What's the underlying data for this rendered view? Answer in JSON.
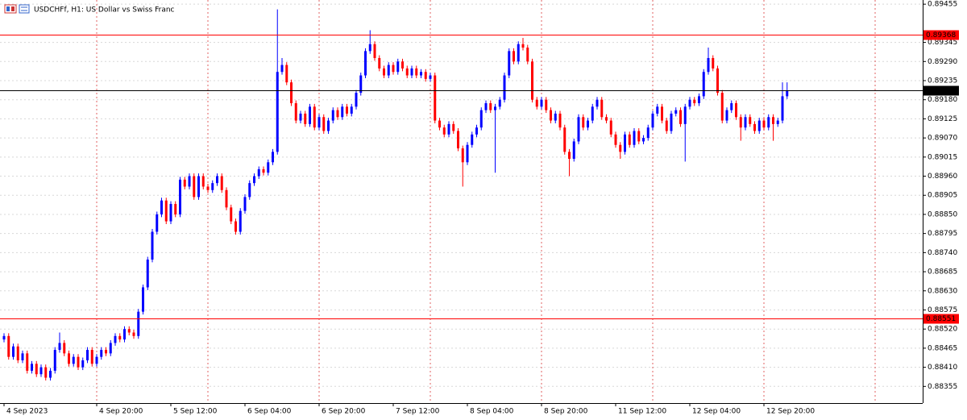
{
  "chart_data": {
    "type": "candlestick",
    "title": "USDCHFf, H1:  US Dollar vs Swiss Franc",
    "up_color": "#0000ff",
    "down_color": "#ff0000",
    "categories": [
      "4 Sep 2023",
      null,
      null,
      null,
      null,
      null,
      null,
      null,
      null,
      null,
      null,
      null,
      null,
      null,
      null,
      null,
      null,
      null,
      null,
      null,
      "4 Sep 20:00",
      null,
      null,
      null,
      null,
      null,
      null,
      null,
      null,
      null,
      null,
      null,
      null,
      null,
      null,
      null,
      "5 Sep 12:00",
      null,
      null,
      null,
      null,
      null,
      null,
      null,
      null,
      null,
      null,
      null,
      null,
      null,
      null,
      null,
      "6 Sep 04:00",
      null,
      null,
      null,
      null,
      null,
      null,
      null,
      null,
      null,
      null,
      null,
      null,
      null,
      null,
      null,
      "6 Sep 20:00",
      null,
      null,
      null,
      null,
      null,
      null,
      null,
      null,
      null,
      null,
      null,
      null,
      null,
      null,
      null,
      "7 Sep 12:00",
      null,
      null,
      null,
      null,
      null,
      null,
      null,
      null,
      null,
      null,
      null,
      null,
      null,
      null,
      null,
      "8 Sep 04:00",
      null,
      null,
      null,
      null,
      null,
      null,
      null,
      null,
      null,
      null,
      null,
      null,
      null,
      null,
      null,
      "8 Sep 20:00",
      null,
      null,
      null,
      null,
      null,
      null,
      null,
      null,
      null,
      null,
      null,
      null,
      null,
      null,
      null,
      "11 Sep 12:00",
      null,
      null,
      null,
      null,
      null,
      null,
      null,
      null,
      null,
      null,
      null,
      null,
      null,
      null,
      null,
      "12 Sep 04:00",
      null,
      null,
      null,
      null,
      null,
      null,
      null,
      null,
      null,
      null,
      null,
      null,
      null,
      null,
      null,
      "12 Sep 20:00",
      null,
      null,
      null,
      null,
      null
    ],
    "open": [
      0.8849,
      0.885,
      0.8844,
      0.8847,
      0.8843,
      0.8845,
      0.884,
      0.8842,
      0.8839,
      0.8841,
      0.8838,
      0.884,
      0.8846,
      0.8848,
      0.8845,
      0.8842,
      0.8844,
      0.8841,
      0.8843,
      0.8846,
      0.8842,
      0.8844,
      0.8846,
      0.8845,
      0.8848,
      0.885,
      0.8849,
      0.8852,
      0.8851,
      0.885,
      0.8857,
      0.8864,
      0.8872,
      0.888,
      0.8885,
      0.8889,
      0.8883,
      0.8888,
      0.8885,
      0.8895,
      0.8893,
      0.8896,
      0.889,
      0.8896,
      0.8893,
      0.8892,
      0.8894,
      0.8896,
      0.8892,
      0.8887,
      0.8883,
      0.888,
      0.8886,
      0.889,
      0.8894,
      0.8896,
      0.8898,
      0.8897,
      0.89,
      0.8903,
      0.8926,
      0.8928,
      0.8923,
      0.8917,
      0.8912,
      0.8914,
      0.8911,
      0.8916,
      0.891,
      0.8913,
      0.8909,
      0.8912,
      0.8915,
      0.8913,
      0.8916,
      0.8914,
      0.8916,
      0.892,
      0.8925,
      0.8932,
      0.8934,
      0.893,
      0.8927,
      0.8925,
      0.8928,
      0.8926,
      0.8929,
      0.8927,
      0.8925,
      0.8927,
      0.8925,
      0.8926,
      0.8924,
      0.8925,
      0.8912,
      0.891,
      0.8908,
      0.8911,
      0.8909,
      0.8904,
      0.89,
      0.8905,
      0.8908,
      0.891,
      0.8915,
      0.8917,
      0.8915,
      0.8916,
      0.8918,
      0.8925,
      0.8932,
      0.8929,
      0.8934,
      0.8933,
      0.8929,
      0.8918,
      0.8916,
      0.8918,
      0.8915,
      0.8912,
      0.8914,
      0.891,
      0.8903,
      0.8901,
      0.8906,
      0.8913,
      0.891,
      0.8912,
      0.8916,
      0.8918,
      0.8913,
      0.8912,
      0.8908,
      0.8905,
      0.8903,
      0.8908,
      0.8905,
      0.8909,
      0.8906,
      0.8907,
      0.891,
      0.8914,
      0.8916,
      0.8912,
      0.8909,
      0.8914,
      0.8915,
      0.8911,
      0.8916,
      0.8918,
      0.8917,
      0.8919,
      0.8926,
      0.893,
      0.8927,
      0.892,
      0.8912,
      0.8915,
      0.8917,
      0.8913,
      0.891,
      0.8913,
      0.8911,
      0.8909,
      0.8912,
      0.891,
      0.8913,
      0.8911,
      0.8912,
      0.8919
    ],
    "high": [
      0.88508,
      0.88508,
      0.88478,
      0.88478,
      0.88458,
      0.88458,
      0.88428,
      0.88428,
      0.88418,
      0.88418,
      0.88408,
      0.88468,
      0.8851,
      0.88488,
      0.88458,
      0.88448,
      0.88448,
      0.88438,
      0.88468,
      0.88468,
      0.88448,
      0.88468,
      0.88468,
      0.88488,
      0.88508,
      0.88508,
      0.88528,
      0.88528,
      0.88518,
      0.88578,
      0.88648,
      0.88728,
      0.88808,
      0.88858,
      0.88898,
      0.88898,
      0.88888,
      0.88888,
      0.88958,
      0.88958,
      0.88968,
      0.88968,
      0.88968,
      0.88968,
      0.88938,
      0.88948,
      0.88968,
      0.88968,
      0.88928,
      0.88878,
      0.88838,
      0.88868,
      0.88908,
      0.88948,
      0.88968,
      0.88988,
      0.88988,
      0.89008,
      0.89038,
      0.8944,
      0.893,
      0.89288,
      0.89238,
      0.89178,
      0.89148,
      0.89148,
      0.89168,
      0.89168,
      0.89138,
      0.89138,
      0.89128,
      0.89158,
      0.89158,
      0.89168,
      0.89168,
      0.89168,
      0.89208,
      0.89258,
      0.89328,
      0.8938,
      0.89348,
      0.89308,
      0.89278,
      0.89288,
      0.89288,
      0.89298,
      0.89298,
      0.89278,
      0.89278,
      0.89278,
      0.89268,
      0.89268,
      0.89258,
      0.89258,
      0.89128,
      0.89108,
      0.89118,
      0.89118,
      0.89098,
      0.89048,
      0.89058,
      0.89088,
      0.89108,
      0.89158,
      0.89178,
      0.89178,
      0.89168,
      0.89188,
      0.89258,
      0.89328,
      0.89328,
      0.89348,
      0.89358,
      0.89338,
      0.89298,
      0.89188,
      0.89188,
      0.89188,
      0.89158,
      0.89148,
      0.89148,
      0.89108,
      0.89038,
      0.89068,
      0.89138,
      0.89138,
      0.89128,
      0.89168,
      0.89188,
      0.89188,
      0.89138,
      0.89128,
      0.89088,
      0.89058,
      0.89088,
      0.89088,
      0.89098,
      0.89098,
      0.89078,
      0.89108,
      0.89148,
      0.89168,
      0.89168,
      0.89128,
      0.89148,
      0.89158,
      0.89158,
      0.89168,
      0.89188,
      0.89188,
      0.89198,
      0.89268,
      0.8933,
      0.89308,
      0.89278,
      0.89208,
      0.89158,
      0.89178,
      0.89178,
      0.89138,
      0.89138,
      0.89138,
      0.89118,
      0.89128,
      0.89128,
      0.89138,
      0.89138,
      0.89128,
      0.8923,
      0.8923
    ],
    "low": [
      0.88482,
      0.88432,
      0.88432,
      0.88422,
      0.88422,
      0.88392,
      0.88392,
      0.88382,
      0.88382,
      0.88372,
      0.88372,
      0.88392,
      0.88452,
      0.88442,
      0.88412,
      0.88412,
      0.88402,
      0.88402,
      0.88422,
      0.88412,
      0.88412,
      0.88432,
      0.88442,
      0.88442,
      0.88472,
      0.88482,
      0.88482,
      0.88502,
      0.88492,
      0.88492,
      0.88562,
      0.88632,
      0.88712,
      0.88792,
      0.88842,
      0.88822,
      0.88822,
      0.88842,
      0.88842,
      0.88922,
      0.88922,
      0.88892,
      0.88892,
      0.88922,
      0.88912,
      0.88912,
      0.88932,
      0.88912,
      0.88862,
      0.88822,
      0.88792,
      0.88792,
      0.88852,
      0.88892,
      0.88932,
      0.88952,
      0.88962,
      0.88962,
      0.88992,
      0.89022,
      0.89252,
      0.89222,
      0.89162,
      0.89112,
      0.89112,
      0.89102,
      0.89102,
      0.89092,
      0.89092,
      0.89082,
      0.89082,
      0.89112,
      0.89122,
      0.89122,
      0.89132,
      0.89132,
      0.89152,
      0.89192,
      0.89242,
      0.89312,
      0.89292,
      0.89262,
      0.89242,
      0.89242,
      0.89252,
      0.89252,
      0.89262,
      0.89242,
      0.89242,
      0.89242,
      0.89242,
      0.89232,
      0.89232,
      0.89112,
      0.89092,
      0.89072,
      0.89072,
      0.89082,
      0.89032,
      0.8893,
      0.88992,
      0.89042,
      0.89072,
      0.89092,
      0.89142,
      0.89142,
      0.8897,
      0.89152,
      0.89172,
      0.89242,
      0.89282,
      0.89282,
      0.89322,
      0.89282,
      0.89172,
      0.89152,
      0.89152,
      0.89142,
      0.89112,
      0.89112,
      0.89092,
      0.89022,
      0.8896,
      0.89002,
      0.89052,
      0.89092,
      0.89092,
      0.89112,
      0.89152,
      0.89122,
      0.89112,
      0.89072,
      0.89042,
      0.8901,
      0.89022,
      0.89042,
      0.89042,
      0.89052,
      0.89052,
      0.89062,
      0.89092,
      0.89132,
      0.89112,
      0.89082,
      0.89082,
      0.89132,
      0.89102,
      0.89002,
      0.89152,
      0.89162,
      0.89162,
      0.89182,
      0.89252,
      0.89262,
      0.89192,
      0.89112,
      0.89112,
      0.89142,
      0.89122,
      0.89062,
      0.89092,
      0.89102,
      0.89082,
      0.89082,
      0.89092,
      0.89092,
      0.89062,
      0.89102,
      0.89112,
      0.89182
    ],
    "close": [
      0.885,
      0.8844,
      0.8847,
      0.8843,
      0.8845,
      0.884,
      0.8842,
      0.8839,
      0.8841,
      0.8838,
      0.884,
      0.8846,
      0.8848,
      0.8845,
      0.8842,
      0.8844,
      0.8841,
      0.8843,
      0.8846,
      0.8842,
      0.8844,
      0.8846,
      0.8845,
      0.8848,
      0.885,
      0.8849,
      0.8852,
      0.8851,
      0.885,
      0.8857,
      0.8864,
      0.8872,
      0.888,
      0.8885,
      0.8889,
      0.8883,
      0.8888,
      0.8885,
      0.8895,
      0.8893,
      0.8896,
      0.889,
      0.8896,
      0.8893,
      0.8892,
      0.8894,
      0.8896,
      0.8892,
      0.8887,
      0.8883,
      0.888,
      0.8886,
      0.889,
      0.8894,
      0.8896,
      0.8898,
      0.8897,
      0.89,
      0.8903,
      0.8926,
      0.8928,
      0.8923,
      0.8917,
      0.8912,
      0.8914,
      0.8911,
      0.8916,
      0.891,
      0.8913,
      0.8909,
      0.8912,
      0.8915,
      0.8913,
      0.8916,
      0.8914,
      0.8916,
      0.892,
      0.8925,
      0.8932,
      0.8934,
      0.893,
      0.8927,
      0.8925,
      0.8928,
      0.8926,
      0.8929,
      0.8927,
      0.8925,
      0.8927,
      0.8925,
      0.8926,
      0.8924,
      0.8925,
      0.8912,
      0.891,
      0.8908,
      0.8911,
      0.8909,
      0.8904,
      0.89,
      0.8905,
      0.8908,
      0.891,
      0.8915,
      0.8917,
      0.8915,
      0.8916,
      0.8918,
      0.8925,
      0.8932,
      0.8929,
      0.8934,
      0.8933,
      0.8929,
      0.8918,
      0.8916,
      0.8918,
      0.8915,
      0.8912,
      0.8914,
      0.891,
      0.8903,
      0.8901,
      0.8906,
      0.8913,
      0.891,
      0.8912,
      0.8916,
      0.8918,
      0.8913,
      0.8912,
      0.8908,
      0.8905,
      0.8903,
      0.8908,
      0.8905,
      0.8909,
      0.8906,
      0.8907,
      0.891,
      0.8914,
      0.8916,
      0.8912,
      0.8909,
      0.8914,
      0.8915,
      0.8911,
      0.8916,
      0.8918,
      0.8917,
      0.8919,
      0.8926,
      0.893,
      0.8927,
      0.892,
      0.8912,
      0.8915,
      0.8917,
      0.8913,
      0.891,
      0.8913,
      0.8911,
      0.8909,
      0.8912,
      0.891,
      0.8913,
      0.8911,
      0.8912,
      0.8919,
      0.89207
    ],
    "ylim": [
      0.88307,
      0.89467
    ],
    "yticks": [
      0.89455,
      0.89345,
      {
        "value": 0.8929,
        "label": "0.89290"
      },
      0.89235,
      {
        "value": 0.8918,
        "label": "0.89180"
      },
      0.89125,
      {
        "value": 0.8907,
        "label": "0.89070"
      },
      0.89015,
      {
        "value": 0.8896,
        "label": "0.88960"
      },
      0.88905,
      {
        "value": 0.8885,
        "label": "0.88850"
      },
      0.88795,
      {
        "value": 0.8874,
        "label": "0.88740"
      },
      0.88685,
      {
        "value": 0.8863,
        "label": "0.88630"
      },
      0.88575,
      {
        "value": 0.8852,
        "label": "0.88520"
      },
      0.88465,
      {
        "value": 0.8841,
        "label": "0.88410"
      },
      0.88355
    ],
    "grid": true,
    "levels": [
      {
        "value": 0.89368,
        "color": "#ff0000"
      },
      {
        "value": 0.89207,
        "color": "#000000"
      },
      {
        "value": 0.88551,
        "color": "#ff0000"
      }
    ]
  }
}
